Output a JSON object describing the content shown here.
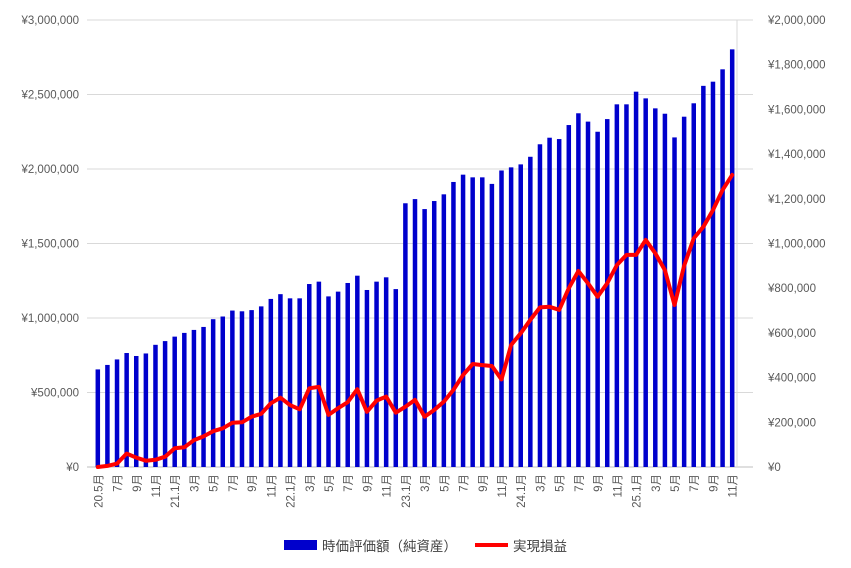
{
  "chart_data": {
    "type": "bar",
    "title": "",
    "description": "Monthly portfolio chart: blue bars = market value (net assets) on left axis, red line = cumulative realized profit on right axis, from 2020-05 (20.5月) to 2025-11 (11月), one bar per month",
    "x_tick_labels": [
      "20.5月",
      "7月",
      "9月",
      "11月",
      "21.1月",
      "3月",
      "5月",
      "7月",
      "9月",
      "11月",
      "22.1月",
      "3月",
      "5月",
      "7月",
      "9月",
      "11月",
      "23.1月",
      "3月",
      "5月",
      "7月",
      "9月",
      "11月",
      "24.1月",
      "3月",
      "5月",
      "7月",
      "9月",
      "11月",
      "25.1月",
      "3月",
      "5月",
      "7月",
      "9月",
      "11月"
    ],
    "x_tick_every": 2,
    "n_points": 67,
    "series": [
      {
        "name": "時価評価額（純資産）",
        "type": "bar",
        "axis": "left",
        "color": "#0000CC",
        "values": [
          655000,
          685000,
          722000,
          765000,
          745000,
          762000,
          820000,
          845000,
          875000,
          900000,
          920000,
          940000,
          992000,
          1010000,
          1050000,
          1045000,
          1053000,
          1078000,
          1128000,
          1160000,
          1132000,
          1132000,
          1228000,
          1244000,
          1145000,
          1177000,
          1235000,
          1284000,
          1188000,
          1244000,
          1273000,
          1194000,
          1770000,
          1798000,
          1731000,
          1785000,
          1830000,
          1913000,
          1962000,
          1944000,
          1944000,
          1900000,
          1990000,
          2011000,
          2031000,
          2082000,
          2166000,
          2210000,
          2201000,
          2295000,
          2374000,
          2318000,
          2250000,
          2335000,
          2434000,
          2434000,
          2519000,
          2474000,
          2407000,
          2371000,
          2212000,
          2351000,
          2441000,
          2558000,
          2586000,
          2669000,
          2803000
        ]
      },
      {
        "name": "実現損益",
        "type": "line",
        "axis": "right",
        "color": "#FF0000",
        "values": [
          0,
          5000,
          15000,
          60000,
          42000,
          28000,
          32000,
          46000,
          84000,
          88000,
          120000,
          137000,
          160000,
          173000,
          198000,
          200000,
          225000,
          238000,
          285000,
          310000,
          277000,
          258000,
          352000,
          359000,
          233000,
          263000,
          290000,
          348000,
          247000,
          297000,
          315000,
          243000,
          270000,
          300000,
          225000,
          255000,
          292000,
          345000,
          412000,
          461000,
          456000,
          452000,
          392000,
          546000,
          598000,
          658000,
          714000,
          717000,
          703000,
          800000,
          877000,
          822000,
          762000,
          822000,
          904000,
          949000,
          949000,
          1016000,
          956000,
          881000,
          725000,
          900000,
          1023000,
          1075000,
          1150000,
          1240000,
          1307000
        ]
      }
    ],
    "left_axis": {
      "min": 0,
      "max": 3000000,
      "step": 500000,
      "tick_labels": [
        "¥0",
        "¥500,000",
        "¥1,000,000",
        "¥1,500,000",
        "¥2,000,000",
        "¥2,500,000",
        "¥3,000,000"
      ]
    },
    "right_axis": {
      "min": 0,
      "max": 2000000,
      "step": 200000,
      "tick_labels": [
        "¥0",
        "¥200,000",
        "¥400,000",
        "¥600,000",
        "¥800,000",
        "¥1,000,000",
        "¥1,200,000",
        "¥1,400,000",
        "¥1,600,000",
        "¥1,800,000",
        "¥2,000,000"
      ]
    },
    "grid": true,
    "legend_position": "bottom",
    "colors": {
      "background": "#FFFFFF",
      "gridline": "#D9D9D9",
      "axis_line": "#BFBFBF",
      "axis_text": "#595959",
      "legend_text": "#404040"
    }
  },
  "legend": {
    "bar_label": "時価評価額（純資産）",
    "line_label": "実現損益"
  }
}
